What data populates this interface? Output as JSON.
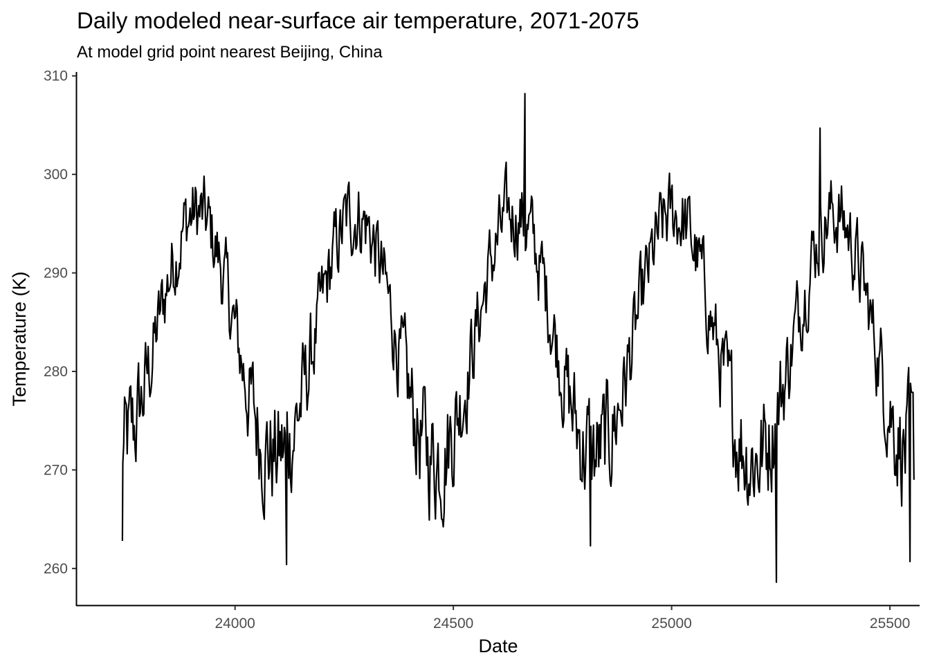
{
  "chart_data": {
    "type": "line",
    "title": "Daily modeled near-surface air temperature, 2071-2075",
    "subtitle": "At model grid point nearest Beijing, China",
    "xlabel": "Date",
    "ylabel": "Temperature (K)",
    "xlim": [
      23636,
      25568
    ],
    "ylim": [
      256.2,
      310.4
    ],
    "x_ticks": [
      "24000",
      "24500",
      "25000",
      "25500"
    ],
    "y_ticks": [
      "260",
      "270",
      "280",
      "290",
      "300",
      "310"
    ],
    "grid": false,
    "legend": "none",
    "line_color": "#000000",
    "x_start": 23741,
    "x_end": 25555,
    "cycle": {
      "mean": 283.7,
      "amplitude": 12.3,
      "period_days": 365.25,
      "peak_day": 23911
    },
    "noise_amplitude": 3.4,
    "annotated_extremes": [
      {
        "x": 23742,
        "y": 262.8
      },
      {
        "x": 24118,
        "y": 260.4
      },
      {
        "x": 24664,
        "y": 308.2
      },
      {
        "x": 24814,
        "y": 262.3
      },
      {
        "x": 25240,
        "y": 258.6
      },
      {
        "x": 25340,
        "y": 304.7
      },
      {
        "x": 25546,
        "y": 260.7
      },
      {
        "x": 25555,
        "y": 269.0
      }
    ]
  }
}
